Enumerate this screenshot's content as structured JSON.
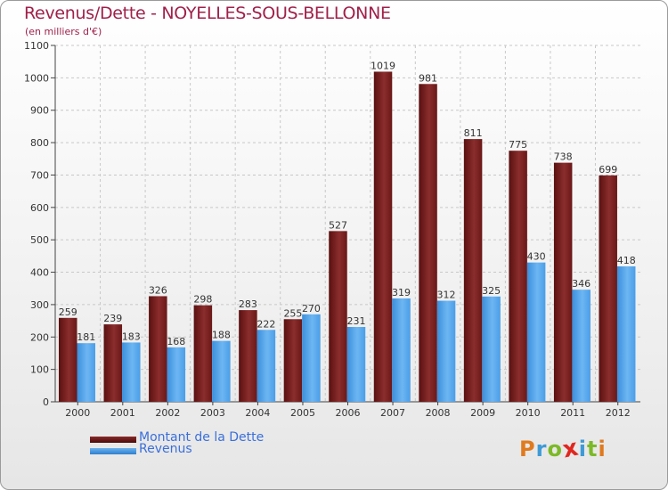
{
  "title": "Revenus/Dette - NOYELLES-SOUS-BELLONNE",
  "subtitle": "(en milliers d'€)",
  "legend": {
    "dette_label": "Montant de la Dette",
    "revenus_label": "Revenus"
  },
  "logo": {
    "text": "Proxiti",
    "letters": [
      "P",
      "r",
      "o",
      "x",
      "i",
      "t",
      "i"
    ],
    "colors": [
      "#e07a1f",
      "#3d9ad6",
      "#7cb928",
      "#e0271f",
      "#3d9ad6",
      "#7cb928",
      "#e07a1f"
    ]
  },
  "colors": {
    "dette": "#6e1a1a",
    "revenus": "#4a9ee8",
    "title": "#a0204a",
    "legend_text": "#3a6fdc"
  },
  "chart_data": {
    "type": "bar",
    "categories": [
      "2000",
      "2001",
      "2002",
      "2003",
      "2004",
      "2005",
      "2006",
      "2007",
      "2008",
      "2009",
      "2010",
      "2011",
      "2012"
    ],
    "series": [
      {
        "name": "Montant de la Dette",
        "values": [
          259,
          239,
          326,
          298,
          283,
          255,
          527,
          1019,
          981,
          811,
          775,
          738,
          699
        ]
      },
      {
        "name": "Revenus",
        "values": [
          181,
          183,
          168,
          188,
          222,
          270,
          231,
          319,
          312,
          325,
          430,
          346,
          418
        ]
      }
    ],
    "yticks": [
      0,
      100,
      200,
      300,
      400,
      500,
      600,
      700,
      800,
      900,
      1000,
      1100
    ],
    "ylim": [
      0,
      1100
    ],
    "grid": true,
    "legend_position": "bottom-left"
  }
}
